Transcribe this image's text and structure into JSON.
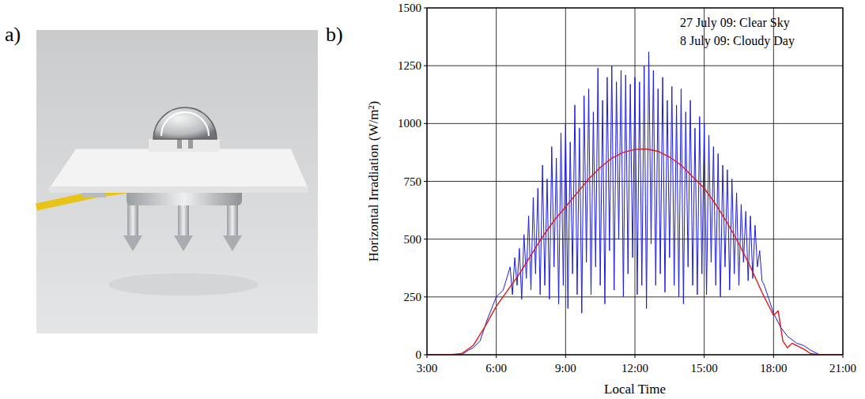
{
  "panel_labels": [
    "a)",
    "b)"
  ],
  "chart_data": {
    "type": "line",
    "x_label": "Local Time",
    "y_label": "Horizontal Irradiation (W/m²)",
    "xlim": [
      3,
      21
    ],
    "xticks": [
      {
        "value": 3,
        "label": "3:00"
      },
      {
        "value": 6,
        "label": "6:00"
      },
      {
        "value": 9,
        "label": "9:00"
      },
      {
        "value": 12,
        "label": "12:00"
      },
      {
        "value": 15,
        "label": "15:00"
      },
      {
        "value": 18,
        "label": "18:00"
      },
      {
        "value": 21,
        "label": "21:00"
      }
    ],
    "ylim": [
      0,
      1500
    ],
    "yticks": [
      0,
      250,
      500,
      750,
      1000,
      1250,
      1500
    ],
    "grid": true,
    "legend": "upper right",
    "series": [
      {
        "name": "27 July 09: Clear Sky",
        "color": "#e01818",
        "x": [
          3,
          4,
          4.5,
          5,
          5.5,
          6,
          6.5,
          7,
          7.5,
          8,
          8.5,
          9,
          9.5,
          10,
          10.5,
          11,
          11.5,
          12,
          12.5,
          13,
          13.5,
          14,
          14.5,
          15,
          15.5,
          16,
          16.5,
          17,
          17.5,
          18,
          18.2,
          18.4,
          18.6,
          18.8,
          19,
          19.3,
          19.6,
          20,
          21
        ],
        "values": [
          0,
          0,
          5,
          40,
          120,
          210,
          280,
          350,
          430,
          510,
          580,
          640,
          700,
          760,
          810,
          850,
          875,
          888,
          890,
          880,
          855,
          820,
          770,
          720,
          650,
          570,
          480,
          380,
          270,
          170,
          190,
          60,
          30,
          50,
          40,
          25,
          5,
          0,
          0
        ]
      },
      {
        "name": "8 July 09: Cloudy Day",
        "color": "#1a1ae6",
        "x": [
          3,
          4,
          4.5,
          4.8,
          5,
          5.3,
          5.6,
          6,
          6.3,
          6.6,
          6.7,
          6.8,
          6.9,
          7.0,
          7.1,
          7.2,
          7.3,
          7.4,
          7.5,
          7.6,
          7.7,
          7.8,
          7.9,
          8.0,
          8.1,
          8.2,
          8.3,
          8.4,
          8.5,
          8.6,
          8.7,
          8.8,
          8.9,
          9.0,
          9.1,
          9.2,
          9.3,
          9.4,
          9.5,
          9.6,
          9.7,
          9.8,
          9.9,
          10.0,
          10.1,
          10.2,
          10.3,
          10.4,
          10.5,
          10.6,
          10.7,
          10.8,
          10.9,
          11.0,
          11.1,
          11.2,
          11.3,
          11.4,
          11.5,
          11.6,
          11.7,
          11.8,
          11.9,
          12.0,
          12.1,
          12.2,
          12.3,
          12.4,
          12.5,
          12.6,
          12.7,
          12.8,
          12.9,
          13.0,
          13.1,
          13.2,
          13.3,
          13.4,
          13.5,
          13.6,
          13.7,
          13.8,
          13.9,
          14.0,
          14.1,
          14.2,
          14.3,
          14.4,
          14.5,
          14.6,
          14.7,
          14.8,
          14.9,
          15.0,
          15.1,
          15.2,
          15.3,
          15.4,
          15.5,
          15.6,
          15.7,
          15.8,
          15.9,
          16.0,
          16.1,
          16.2,
          16.3,
          16.4,
          16.5,
          16.6,
          16.7,
          16.8,
          16.9,
          17.0,
          17.1,
          17.2,
          17.3,
          17.4,
          17.5,
          17.6,
          17.8,
          18,
          18.3,
          18.6,
          19,
          19.3,
          19.6,
          20,
          21
        ],
        "values": [
          0,
          0,
          0,
          20,
          30,
          60,
          150,
          250,
          280,
          380,
          260,
          420,
          300,
          460,
          240,
          520,
          330,
          600,
          280,
          680,
          350,
          720,
          260,
          820,
          300,
          760,
          240,
          900,
          380,
          850,
          220,
          960,
          300,
          1000,
          200,
          920,
          350,
          1080,
          260,
          980,
          180,
          1120,
          400,
          1150,
          260,
          1050,
          380,
          1240,
          300,
          1100,
          220,
          1200,
          450,
          1250,
          280,
          1180,
          500,
          1230,
          250,
          1210,
          350,
          1170,
          420,
          1200,
          260,
          1180,
          300,
          1250,
          200,
          1310,
          480,
          1230,
          300,
          1150,
          350,
          1200,
          270,
          1100,
          420,
          1160,
          300,
          1080,
          250,
          1150,
          220,
          1050,
          380,
          1100,
          300,
          980,
          260,
          1030,
          350,
          1000,
          260,
          950,
          400,
          900,
          300,
          870,
          250,
          820,
          380,
          800,
          280,
          760,
          350,
          700,
          300,
          650,
          400,
          620,
          320,
          600,
          330,
          560,
          380,
          450,
          320,
          300,
          240,
          180,
          120,
          80,
          50,
          40,
          20,
          0,
          0
        ]
      }
    ]
  }
}
